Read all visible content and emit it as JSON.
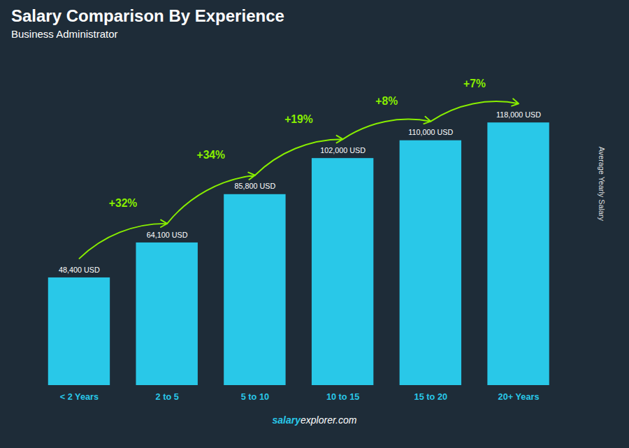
{
  "chart_data": {
    "type": "bar",
    "title": "Salary Comparison By Experience",
    "subtitle": "Business Administrator",
    "ylabel": "Average Yearly Salary",
    "categories": [
      "< 2 Years",
      "2 to 5",
      "5 to 10",
      "10 to 15",
      "15 to 20",
      "20+ Years"
    ],
    "values": [
      48400,
      64100,
      85800,
      102000,
      110000,
      118000
    ],
    "value_labels": [
      "48,400 USD",
      "64,100 USD",
      "85,800 USD",
      "102,000 USD",
      "110,000 USD",
      "118,000 USD"
    ],
    "data_labels": true,
    "color": "#29c8e8",
    "annotations": [
      "+32%",
      "+34%",
      "+19%",
      "+8%",
      "+7%"
    ],
    "annotation_color": "#88ee00",
    "footer": [
      "salary",
      "explorer.com"
    ],
    "ylim": [
      0,
      148000
    ],
    "tick_labels": "x",
    "grid": false
  }
}
